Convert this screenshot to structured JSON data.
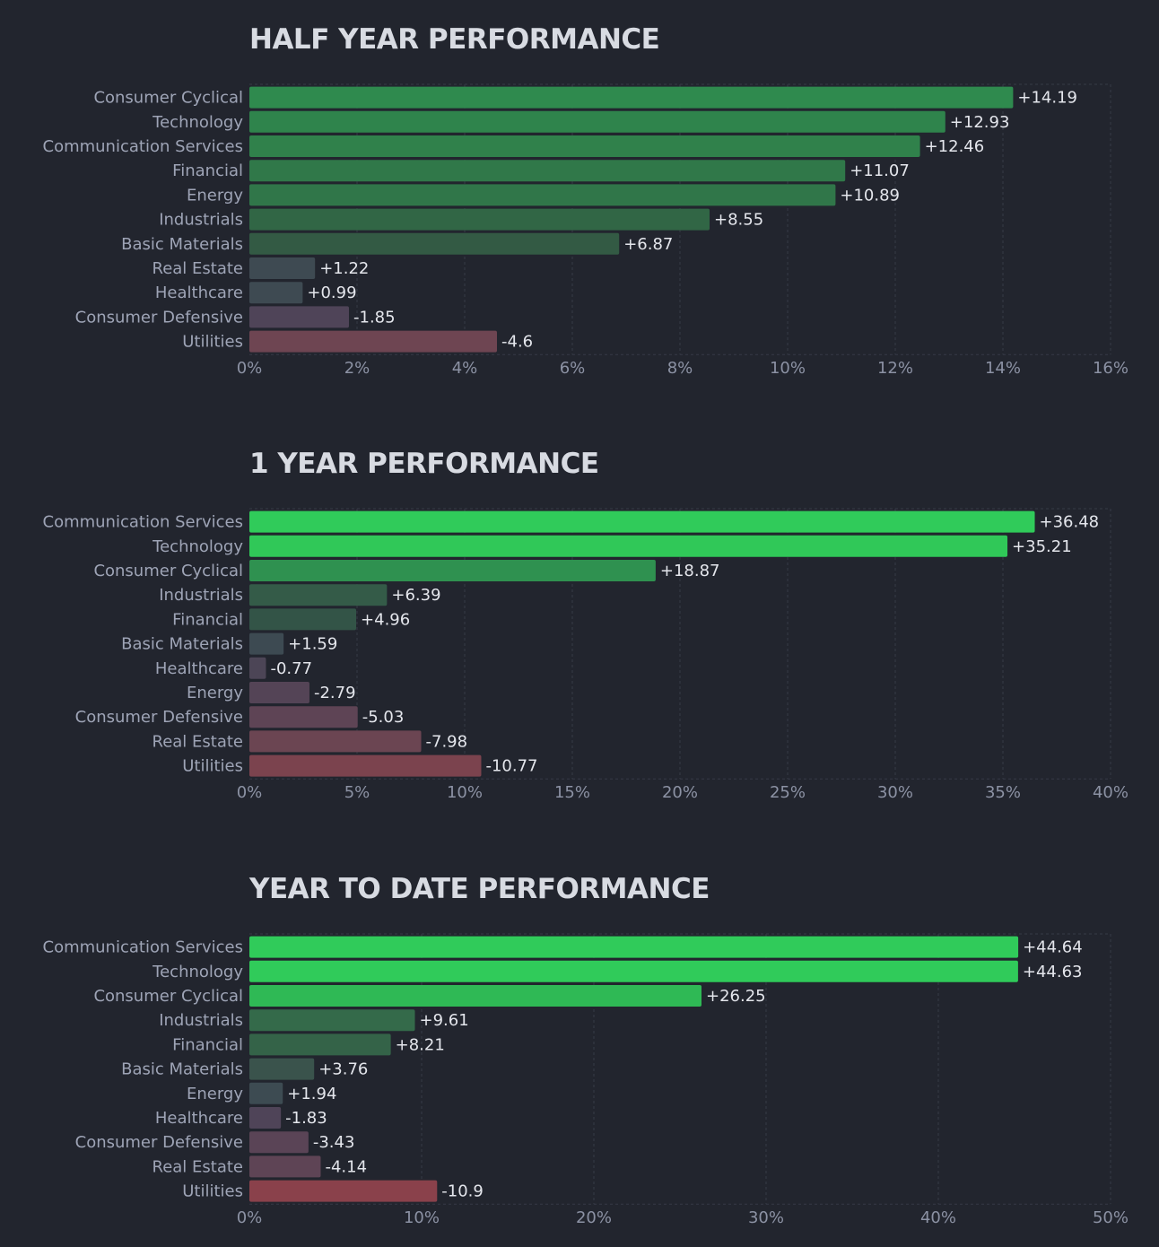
{
  "chart_data": [
    {
      "type": "bar",
      "title": "HALF YEAR PERFORMANCE",
      "orientation": "horizontal",
      "categories": [
        "Consumer Cyclical",
        "Technology",
        "Communication Services",
        "Financial",
        "Energy",
        "Industrials",
        "Basic Materials",
        "Real Estate",
        "Healthcare",
        "Consumer Defensive",
        "Utilities"
      ],
      "values": [
        14.19,
        12.93,
        12.46,
        11.07,
        10.89,
        8.55,
        6.87,
        1.22,
        0.99,
        -1.85,
        -4.6
      ],
      "value_labels": [
        "+14.19",
        "+12.93",
        "+12.46",
        "+11.07",
        "+10.89",
        "+8.55",
        "+6.87",
        "+1.22",
        "+0.99",
        "-1.85",
        "-4.6"
      ],
      "bar_colors": [
        "#2f8a4e",
        "#2f844c",
        "#30814b",
        "#307849",
        "#307649",
        "#316645",
        "#335a44",
        "#3e4a52",
        "#3e4a52",
        "#4f4458",
        "#6e4552"
      ],
      "xlim": [
        0,
        16
      ],
      "xticks": [
        "0%",
        "2%",
        "4%",
        "6%",
        "8%",
        "10%",
        "12%",
        "14%",
        "16%"
      ],
      "grid": true
    },
    {
      "type": "bar",
      "title": "1 YEAR PERFORMANCE",
      "orientation": "horizontal",
      "categories": [
        "Communication Services",
        "Technology",
        "Consumer Cyclical",
        "Industrials",
        "Financial",
        "Basic Materials",
        "Healthcare",
        "Energy",
        "Consumer Defensive",
        "Real Estate",
        "Utilities"
      ],
      "values": [
        36.48,
        35.21,
        18.87,
        6.39,
        4.96,
        1.59,
        -0.77,
        -2.79,
        -5.03,
        -7.98,
        -10.77
      ],
      "value_labels": [
        "+36.48",
        "+35.21",
        "+18.87",
        "+6.39",
        "+4.96",
        "+1.59",
        "-0.77",
        "-2.79",
        "-5.03",
        "-7.98",
        "-10.77"
      ],
      "bar_colors": [
        "#30cb5a",
        "#30c858",
        "#2f9150",
        "#345b48",
        "#335447",
        "#3d4a52",
        "#4c4556",
        "#544456",
        "#5e4455",
        "#6b4552",
        "#7b434e"
      ],
      "xlim": [
        0,
        40
      ],
      "xticks": [
        "0%",
        "5%",
        "10%",
        "15%",
        "20%",
        "25%",
        "30%",
        "35%",
        "40%"
      ],
      "grid": true
    },
    {
      "type": "bar",
      "title": "YEAR TO DATE PERFORMANCE",
      "orientation": "horizontal",
      "categories": [
        "Communication Services",
        "Technology",
        "Consumer Cyclical",
        "Industrials",
        "Financial",
        "Basic Materials",
        "Energy",
        "Healthcare",
        "Consumer Defensive",
        "Real Estate",
        "Utilities"
      ],
      "values": [
        44.64,
        44.63,
        26.25,
        9.61,
        8.21,
        3.76,
        1.94,
        -1.83,
        -3.43,
        -4.14,
        -10.9
      ],
      "value_labels": [
        "+44.64",
        "+44.63",
        "+26.25",
        "+9.61",
        "+8.21",
        "+3.76",
        "+1.94",
        "-1.83",
        "-3.43",
        "-4.14",
        "-10.9"
      ],
      "bar_colors": [
        "#30cb5a",
        "#30cb5a",
        "#2fb955",
        "#346a4a",
        "#346348",
        "#3a534c",
        "#3d4b52",
        "#4f4458",
        "#5a4456",
        "#5e4455",
        "#8a414b"
      ],
      "xlim": [
        0,
        50
      ],
      "xticks": [
        "0%",
        "10%",
        "20%",
        "30%",
        "40%",
        "50%"
      ],
      "grid": true
    }
  ]
}
